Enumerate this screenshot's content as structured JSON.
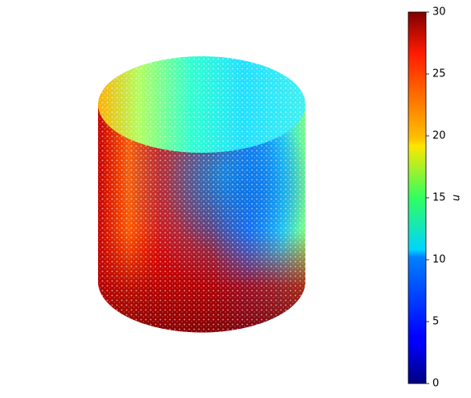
{
  "chart_data": {
    "type": "scatter3d",
    "colorbar": {
      "label": "u",
      "lim": [
        0,
        30
      ],
      "ticks": [
        0,
        5,
        10,
        15,
        20,
        25,
        30
      ],
      "colormap": "jet"
    }
  }
}
